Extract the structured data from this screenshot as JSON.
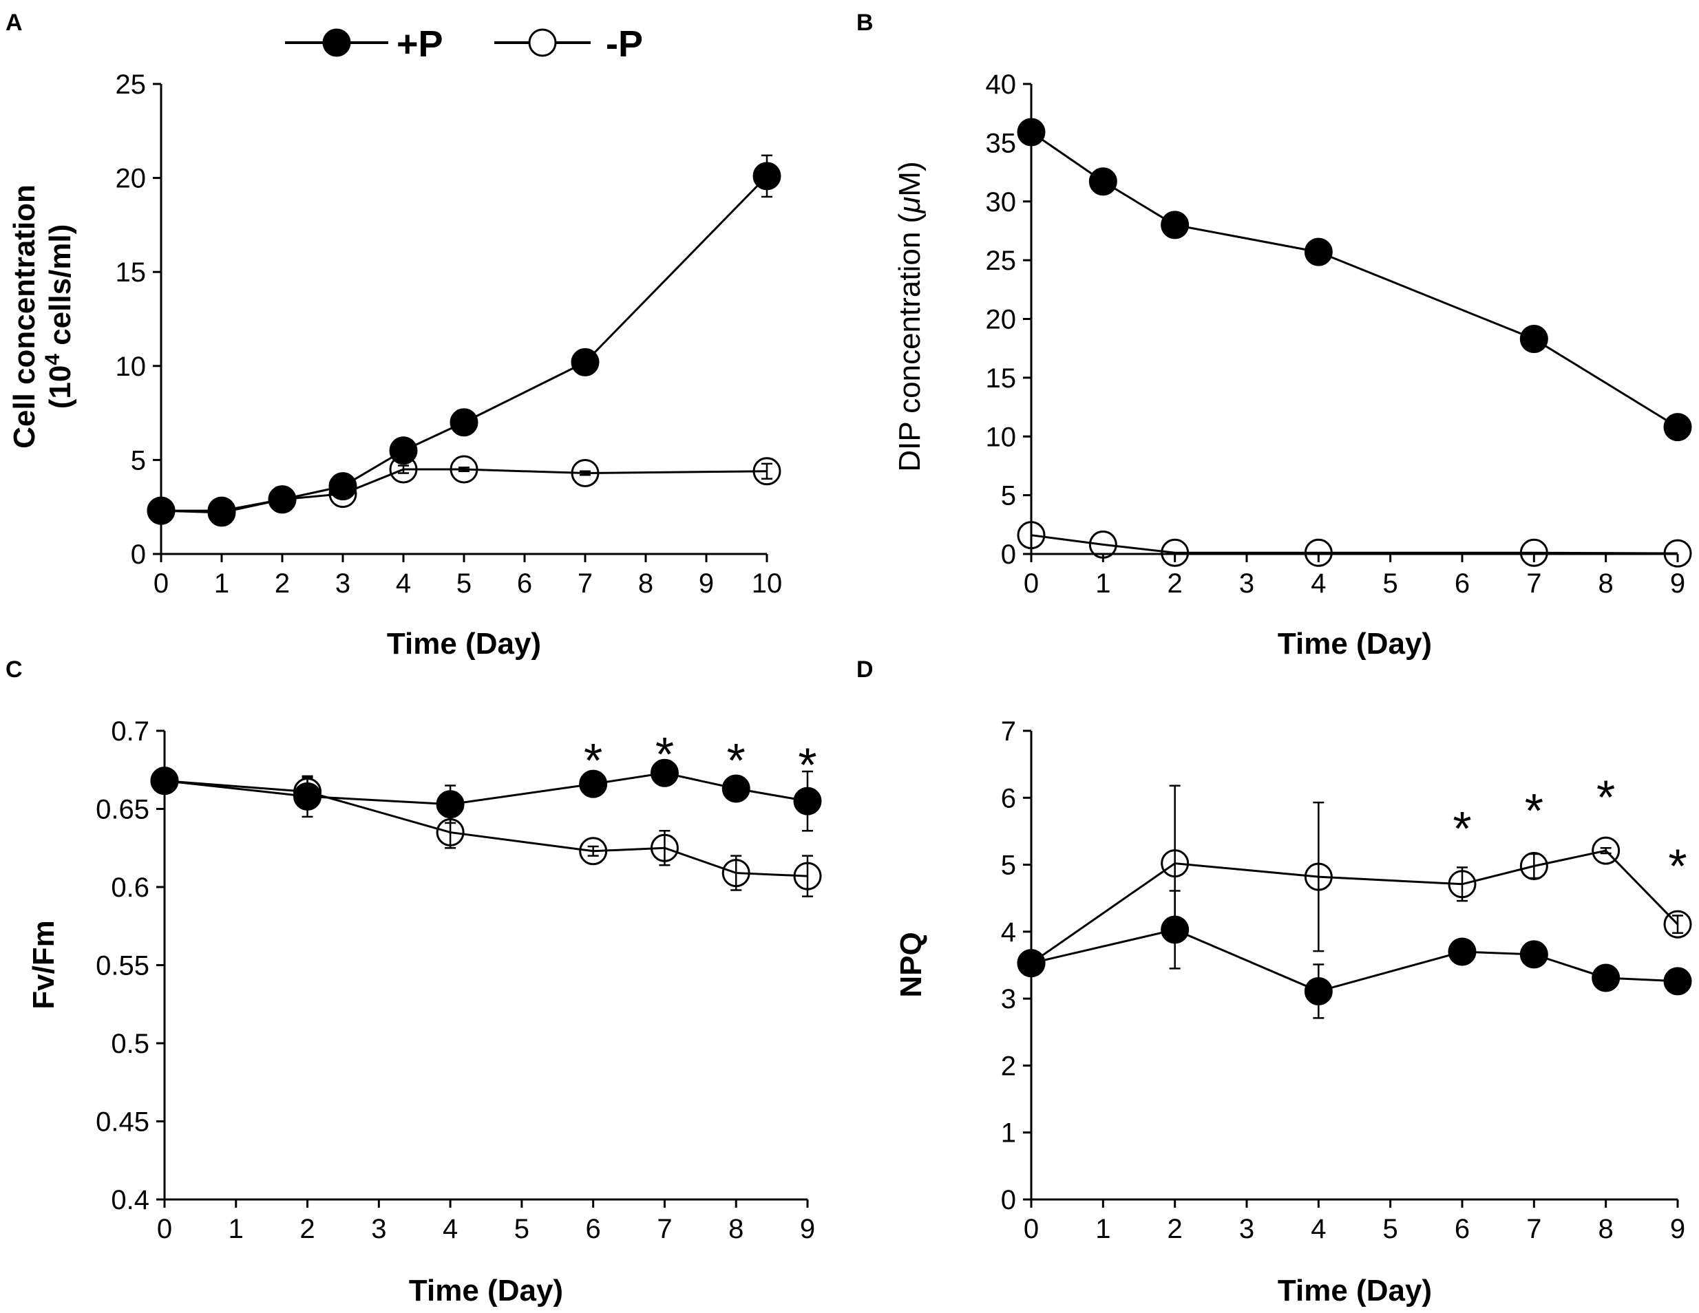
{
  "legend": [
    {
      "label": "+P",
      "filled": true
    },
    {
      "label": "-P",
      "filled": false
    }
  ],
  "chart_data": [
    {
      "panel": "A",
      "type": "line",
      "title": "",
      "xlabel": "Time (Day)",
      "ylabel": [
        "Cell concentration",
        "(10",
        "4",
        " cells/ml)"
      ],
      "xlim": [
        0,
        10
      ],
      "ylim": [
        0,
        25
      ],
      "xticks": [
        "0",
        "1",
        "2",
        "3",
        "4",
        "5",
        "6",
        "7",
        "8",
        "9",
        "10"
      ],
      "yticks": [
        "0",
        "5",
        "10",
        "15",
        "20",
        "25"
      ],
      "series": [
        {
          "name": "+P",
          "filled": true,
          "x": [
            0,
            1,
            2,
            3,
            4,
            5,
            7,
            10
          ],
          "y": [
            2.3,
            2.2,
            2.9,
            3.6,
            5.5,
            7.0,
            10.2,
            20.1
          ],
          "err": [
            0.2,
            0.2,
            0.2,
            0.2,
            0.2,
            0.2,
            0.3,
            1.1
          ]
        },
        {
          "name": "-P",
          "filled": false,
          "x": [
            0,
            1,
            2,
            3,
            4,
            5,
            7,
            10
          ],
          "y": [
            2.3,
            2.3,
            2.9,
            3.2,
            4.5,
            4.5,
            4.3,
            4.4
          ],
          "err": [
            0.1,
            0.1,
            0.1,
            0.1,
            0.2,
            0.1,
            0.1,
            0.4
          ]
        }
      ],
      "annotations": []
    },
    {
      "panel": "B",
      "type": "line",
      "title": "",
      "xlabel": "Time (Day)",
      "ylabel": [
        "DIP concentration (",
        "μ",
        "M)"
      ],
      "xlim": [
        0,
        9
      ],
      "ylim": [
        0,
        40
      ],
      "xticks": [
        "0",
        "1",
        "2",
        "3",
        "4",
        "5",
        "6",
        "7",
        "8",
        "9"
      ],
      "yticks": [
        "0",
        "5",
        "10",
        "15",
        "20",
        "25",
        "30",
        "35",
        "40"
      ],
      "series": [
        {
          "name": "+P",
          "filled": true,
          "x": [
            0,
            1,
            2,
            4,
            7,
            9
          ],
          "y": [
            35.9,
            31.7,
            28.0,
            25.7,
            18.3,
            10.8
          ],
          "err": [
            0,
            0,
            0,
            0,
            0,
            0
          ]
        },
        {
          "name": "-P",
          "filled": false,
          "x": [
            0,
            1,
            2,
            4,
            7,
            9
          ],
          "y": [
            1.6,
            0.8,
            0.1,
            0.1,
            0.1,
            0.05
          ],
          "err": [
            0,
            0,
            0,
            0,
            0,
            0
          ]
        }
      ],
      "annotations": []
    },
    {
      "panel": "C",
      "type": "line",
      "title": "",
      "xlabel": "Time (Day)",
      "ylabel": [
        "Fv/Fm"
      ],
      "xlim": [
        0,
        9
      ],
      "ylim": [
        0.4,
        0.7
      ],
      "xticks": [
        "0",
        "1",
        "2",
        "3",
        "4",
        "5",
        "6",
        "7",
        "8",
        "9"
      ],
      "yticks": [
        "0.4",
        "0.45",
        "0.5",
        "0.55",
        "0.6",
        "0.65",
        "0.7"
      ],
      "series": [
        {
          "name": "+P",
          "filled": true,
          "x": [
            0,
            2,
            4,
            6,
            7,
            8,
            9
          ],
          "y": [
            0.668,
            0.658,
            0.653,
            0.666,
            0.673,
            0.663,
            0.655
          ],
          "err": [
            0.003,
            0.013,
            0.012,
            0.004,
            0.005,
            0.005,
            0.019
          ]
        },
        {
          "name": "-P",
          "filled": false,
          "x": [
            0,
            2,
            4,
            6,
            7,
            8,
            9
          ],
          "y": [
            0.668,
            0.661,
            0.635,
            0.623,
            0.625,
            0.609,
            0.607
          ],
          "err": [
            0.003,
            0.009,
            0.01,
            0.003,
            0.011,
            0.011,
            0.013
          ]
        }
      ],
      "annotations": [
        {
          "text": "*",
          "x": 6,
          "y": 0.682
        },
        {
          "text": "*",
          "x": 7,
          "y": 0.686
        },
        {
          "text": "*",
          "x": 8,
          "y": 0.682
        },
        {
          "text": "*",
          "x": 9,
          "y": 0.679
        }
      ]
    },
    {
      "panel": "D",
      "type": "line",
      "title": "",
      "xlabel": "Time (Day)",
      "ylabel": [
        "NPQ"
      ],
      "xlim": [
        0,
        9
      ],
      "ylim": [
        0,
        7
      ],
      "xticks": [
        "0",
        "1",
        "2",
        "3",
        "4",
        "5",
        "6",
        "7",
        "8",
        "9"
      ],
      "yticks": [
        "0",
        "1",
        "2",
        "3",
        "4",
        "5",
        "6",
        "7"
      ],
      "series": [
        {
          "name": "+P",
          "filled": true,
          "x": [
            0,
            2,
            4,
            6,
            7,
            8,
            9
          ],
          "y": [
            3.53,
            4.03,
            3.11,
            3.7,
            3.66,
            3.31,
            3.26
          ],
          "err": [
            0.05,
            0.58,
            0.4,
            0.06,
            0.07,
            0.14,
            0.05
          ]
        },
        {
          "name": "-P",
          "filled": false,
          "x": [
            0,
            2,
            4,
            6,
            7,
            8,
            9
          ],
          "y": [
            3.53,
            5.02,
            4.82,
            4.71,
            4.98,
            5.21,
            4.11
          ],
          "err": [
            0.05,
            1.16,
            1.11,
            0.25,
            0.18,
            0.04,
            0.13
          ]
        }
      ],
      "annotations": [
        {
          "text": "*",
          "x": 6,
          "y": 5.56
        },
        {
          "text": "*",
          "x": 7,
          "y": 5.83
        },
        {
          "text": "*",
          "x": 8,
          "y": 6.03
        },
        {
          "text": "*",
          "x": 9,
          "y": 5.0
        }
      ]
    }
  ]
}
